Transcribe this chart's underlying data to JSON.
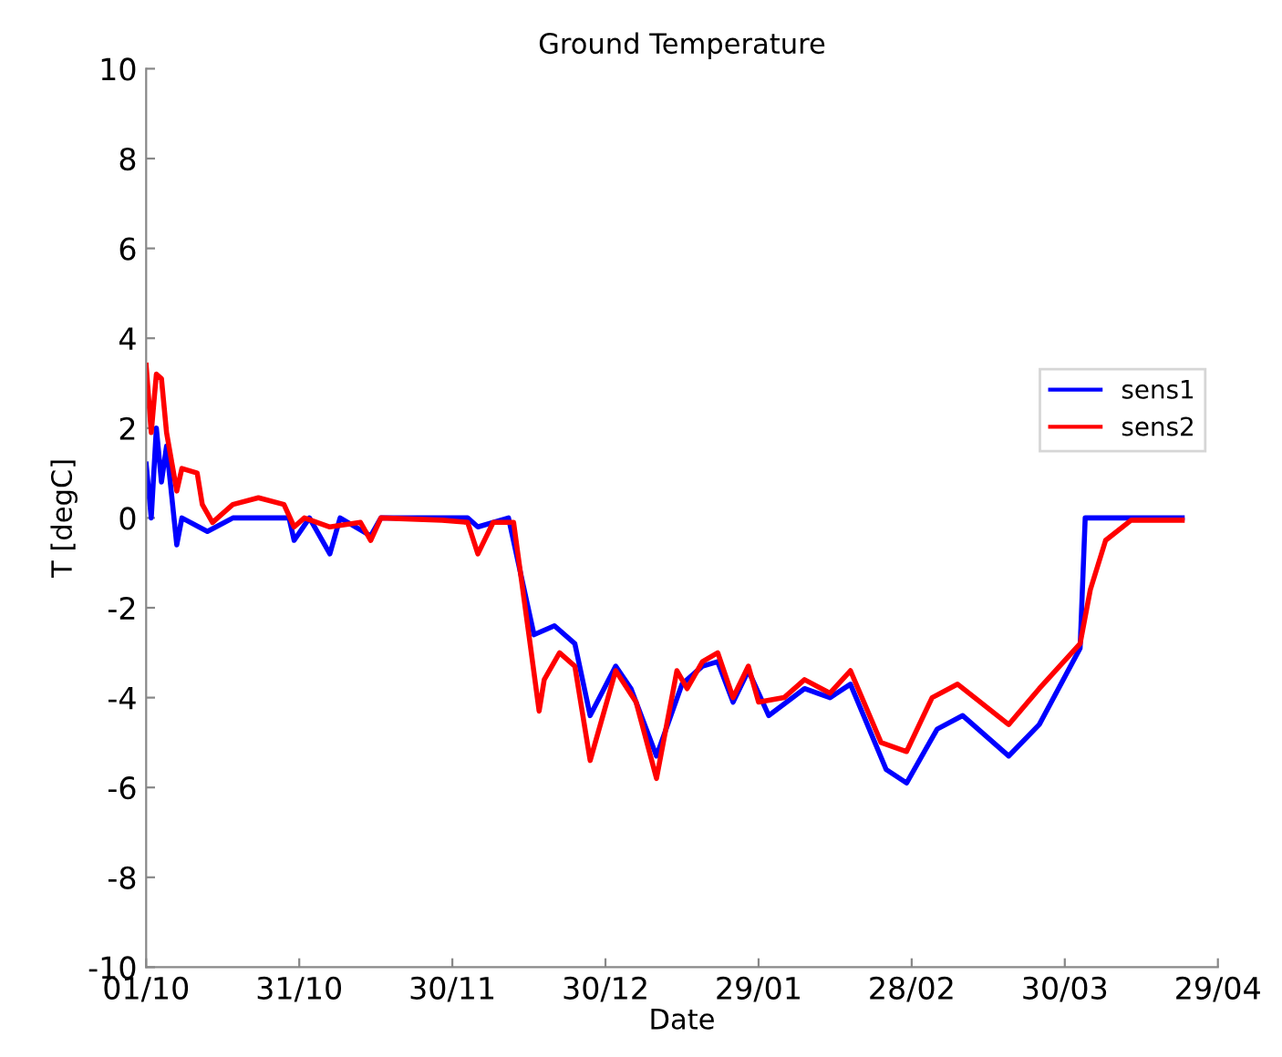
{
  "chart_data": {
    "type": "line",
    "title": "Ground Temperature",
    "xlabel": "Date",
    "ylabel": "T [degC]",
    "xlim": [
      "2012-10-01",
      "2013-04-29"
    ],
    "xticks": [
      {
        "value": "2012-10-01",
        "label": "01/10"
      },
      {
        "value": "2012-10-31",
        "label": "31/10"
      },
      {
        "value": "2012-11-30",
        "label": "30/11"
      },
      {
        "value": "2012-12-30",
        "label": "30/12"
      },
      {
        "value": "2013-01-29",
        "label": "29/01"
      },
      {
        "value": "2013-02-28",
        "label": "28/02"
      },
      {
        "value": "2013-03-30",
        "label": "30/03"
      },
      {
        "value": "2013-04-29",
        "label": "29/04"
      }
    ],
    "ylim": [
      -10,
      10
    ],
    "yticks": [
      -10,
      -8,
      -6,
      -4,
      -2,
      0,
      2,
      4,
      6,
      8,
      10
    ],
    "grid": false,
    "legend": "right",
    "line_style": "solid",
    "series": [
      {
        "name": "sens1",
        "color": "#0000ff",
        "x": [
          "2012-10-01",
          "2012-10-02",
          "2012-10-03",
          "2012-10-04",
          "2012-10-05",
          "2012-10-07",
          "2012-10-08",
          "2012-10-13",
          "2012-10-18",
          "2012-10-29",
          "2012-10-30",
          "2012-11-02",
          "2012-11-06",
          "2012-11-08",
          "2012-11-14",
          "2012-11-16",
          "2012-12-03",
          "2012-12-05",
          "2012-12-11",
          "2012-12-16",
          "2012-12-20",
          "2012-12-24",
          "2012-12-27",
          "2013-01-01",
          "2013-01-04",
          "2013-01-09",
          "2013-01-14",
          "2013-01-18",
          "2013-01-21",
          "2013-01-24",
          "2013-01-27",
          "2013-01-31",
          "2013-02-07",
          "2013-02-12",
          "2013-02-16",
          "2013-02-23",
          "2013-02-27",
          "2013-03-05",
          "2013-03-10",
          "2013-03-19",
          "2013-03-25",
          "2013-04-02",
          "2013-04-03",
          "2013-04-22"
        ],
        "values": [
          1.2,
          0.0,
          2.0,
          0.8,
          1.6,
          -0.6,
          0.0,
          -0.3,
          0.0,
          0.0,
          -0.5,
          0.0,
          -0.8,
          0.0,
          -0.4,
          0.0,
          0.0,
          -0.2,
          0.0,
          -2.6,
          -2.4,
          -2.8,
          -4.4,
          -3.3,
          -3.8,
          -5.3,
          -3.7,
          -3.3,
          -3.2,
          -4.1,
          -3.4,
          -4.4,
          -3.8,
          -4.0,
          -3.7,
          -5.6,
          -5.9,
          -4.7,
          -4.4,
          -5.3,
          -4.6,
          -2.9,
          0.0,
          0.0
        ]
      },
      {
        "name": "sens2",
        "color": "#ff0000",
        "x": [
          "2012-10-01",
          "2012-10-02",
          "2012-10-03",
          "2012-10-04",
          "2012-10-05",
          "2012-10-07",
          "2012-10-08",
          "2012-10-11",
          "2012-10-12",
          "2012-10-14",
          "2012-10-18",
          "2012-10-23",
          "2012-10-28",
          "2012-10-30",
          "2012-11-01",
          "2012-11-06",
          "2012-11-12",
          "2012-11-14",
          "2012-11-16",
          "2012-11-28",
          "2012-12-03",
          "2012-12-05",
          "2012-12-08",
          "2012-12-12",
          "2012-12-15",
          "2012-12-17",
          "2012-12-18",
          "2012-12-21",
          "2012-12-24",
          "2012-12-27",
          "2013-01-01",
          "2013-01-05",
          "2013-01-09",
          "2013-01-13",
          "2013-01-15",
          "2013-01-18",
          "2013-01-21",
          "2013-01-24",
          "2013-01-27",
          "2013-01-29",
          "2013-02-03",
          "2013-02-07",
          "2013-02-12",
          "2013-02-16",
          "2013-02-22",
          "2013-02-27",
          "2013-03-04",
          "2013-03-09",
          "2013-03-19",
          "2013-03-25",
          "2013-04-02",
          "2013-04-04",
          "2013-04-07",
          "2013-04-12",
          "2013-04-22"
        ],
        "values": [
          3.4,
          1.9,
          3.2,
          3.1,
          1.9,
          0.6,
          1.1,
          1.0,
          0.3,
          -0.1,
          0.3,
          0.45,
          0.3,
          -0.2,
          0.0,
          -0.2,
          -0.1,
          -0.5,
          0.0,
          -0.05,
          -0.1,
          -0.8,
          -0.1,
          -0.1,
          -2.6,
          -4.3,
          -3.6,
          -3.0,
          -3.3,
          -5.4,
          -3.4,
          -4.1,
          -5.8,
          -3.4,
          -3.8,
          -3.2,
          -3.0,
          -4.0,
          -3.3,
          -4.1,
          -4.0,
          -3.6,
          -3.9,
          -3.4,
          -5.0,
          -5.2,
          -4.0,
          -3.7,
          -4.6,
          -3.8,
          -2.8,
          -1.6,
          -0.5,
          -0.05,
          -0.05
        ]
      }
    ]
  }
}
